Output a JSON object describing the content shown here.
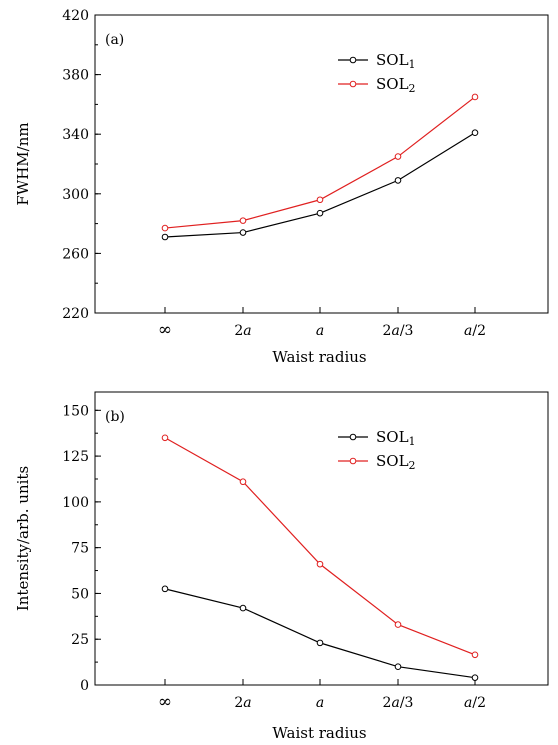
{
  "chart_data": [
    {
      "type": "line",
      "panel_label": "(a)",
      "xlabel": "Waist radius",
      "ylabel": "FWHM/nm",
      "categories": [
        {
          "pre": "",
          "num": "∞",
          "var": "",
          "post": ""
        },
        {
          "pre": "2",
          "num": "",
          "var": "a",
          "post": ""
        },
        {
          "pre": "",
          "num": "",
          "var": "a",
          "post": ""
        },
        {
          "pre": "2",
          "num": "",
          "var": "a",
          "post": "/3"
        },
        {
          "pre": "",
          "num": "",
          "var": "a",
          "post": "/2"
        }
      ],
      "ylim": [
        220,
        420
      ],
      "yticks": [
        220,
        260,
        300,
        340,
        380,
        420
      ],
      "y_minor_step": 20,
      "legend_position": "top-right",
      "series": [
        {
          "name": "SOL",
          "sub": "1",
          "color": "#000000",
          "values": [
            271,
            274,
            287,
            309,
            341
          ]
        },
        {
          "name": "SOL",
          "sub": "2",
          "color": "#e02020",
          "values": [
            277,
            282,
            296,
            325,
            365
          ]
        }
      ]
    },
    {
      "type": "line",
      "panel_label": "(b)",
      "xlabel": "Waist radius",
      "ylabel": "Intensity/arb. units",
      "categories": [
        {
          "pre": "",
          "num": "∞",
          "var": "",
          "post": ""
        },
        {
          "pre": "2",
          "num": "",
          "var": "a",
          "post": ""
        },
        {
          "pre": "",
          "num": "",
          "var": "a",
          "post": ""
        },
        {
          "pre": "2",
          "num": "",
          "var": "a",
          "post": "/3"
        },
        {
          "pre": "",
          "num": "",
          "var": "a",
          "post": "/2"
        }
      ],
      "ylim": [
        0,
        160
      ],
      "yticks": [
        0,
        25,
        50,
        75,
        100,
        125,
        150
      ],
      "y_minor_step": 12.5,
      "legend_position": "top-right",
      "series": [
        {
          "name": "SOL",
          "sub": "1",
          "color": "#000000",
          "values": [
            52.5,
            42,
            23,
            10,
            4
          ]
        },
        {
          "name": "SOL",
          "sub": "2",
          "color": "#e02020",
          "values": [
            135,
            111,
            66,
            33,
            16.5
          ]
        }
      ]
    }
  ]
}
